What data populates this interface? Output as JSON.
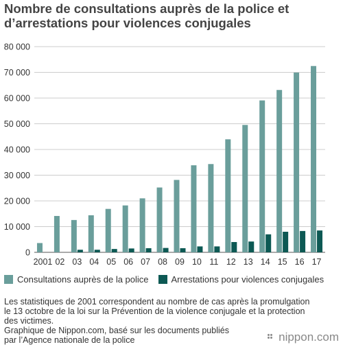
{
  "title": {
    "line1": "Nombre de consultations auprès de la police et",
    "line2": "d’arrestations pour violences conjugales"
  },
  "chart_data": {
    "type": "bar",
    "categories": [
      "2001",
      "02",
      "03",
      "04",
      "05",
      "06",
      "07",
      "08",
      "09",
      "10",
      "11",
      "12",
      "13",
      "14",
      "15",
      "16",
      "17"
    ],
    "series": [
      {
        "name": "Consultations auprès de la police",
        "color": "#6a9e9b",
        "values": [
          3608,
          14140,
          12568,
          14410,
          16888,
          18236,
          20992,
          25210,
          28158,
          33852,
          34329,
          43950,
          49533,
          59072,
          63141,
          69908,
          72455
        ]
      },
      {
        "name": "Arrestations pour violences conjugales",
        "color": "#0d5954",
        "values": [
          0,
          0,
          1000,
          1000,
          1300,
          1500,
          1600,
          1700,
          1600,
          2300,
          2300,
          4000,
          4200,
          7000,
          8000,
          8300,
          8500
        ]
      }
    ],
    "ylim": [
      0,
      80000
    ],
    "yticks": [
      "0",
      "10 000",
      "20 000",
      "30 000",
      "40 000",
      "50 000",
      "60 000",
      "70 000",
      "80 000"
    ],
    "ytick_values": [
      0,
      10000,
      20000,
      30000,
      40000,
      50000,
      60000,
      70000,
      80000
    ],
    "grid": true,
    "legend_position": "bottom"
  },
  "notes": {
    "line1": "Les statistiques de 2001 correspondent au nombre de cas après la promulgation",
    "line2": "le 13 octobre de la loi sur la Prévention de la violence conjugale et la protection",
    "line3": "des victimes.",
    "line4": "Graphique de Nippon.com, basé sur les documents publiés",
    "line5": "par l’Agence nationale de la police"
  },
  "logo": {
    "text": "nippon.com"
  }
}
